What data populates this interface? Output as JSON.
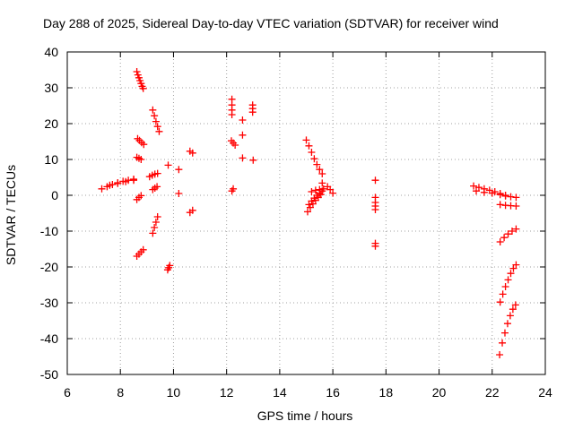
{
  "chart_data": {
    "type": "scatter",
    "title": "Day 288 of 2025, Sidereal Day-to-day VTEC variation (SDTVAR) for receiver wind",
    "xlabel": "GPS time / hours",
    "ylabel": "SDTVAR / TECUs",
    "xlim": [
      6,
      24
    ],
    "ylim": [
      -50,
      40
    ],
    "xticks": [
      6,
      8,
      10,
      12,
      14,
      16,
      18,
      20,
      22,
      24
    ],
    "yticks": [
      -50,
      -40,
      -30,
      -20,
      -10,
      0,
      10,
      20,
      30,
      40
    ],
    "grid": true,
    "marker": "+",
    "color": "#ff0000",
    "series": [
      {
        "name": "s01",
        "x": [
          7.3,
          7.5,
          7.7,
          7.9,
          8.1,
          8.3,
          8.5
        ],
        "y": [
          1.8,
          2.4,
          3.0,
          3.5,
          3.9,
          4.2,
          4.5
        ]
      },
      {
        "name": "s02",
        "x": [
          7.6,
          7.9,
          8.2,
          8.5
        ],
        "y": [
          2.8,
          3.3,
          3.8,
          4.2
        ]
      },
      {
        "name": "s03",
        "x": [
          8.62,
          8.66,
          8.7,
          8.74,
          8.78,
          8.82,
          8.86
        ],
        "y": [
          34.5,
          33.6,
          32.8,
          32.0,
          31.2,
          30.4,
          29.8
        ]
      },
      {
        "name": "s04",
        "x": [
          8.65,
          8.72,
          8.8,
          8.88
        ],
        "y": [
          15.8,
          15.3,
          14.7,
          14.2
        ]
      },
      {
        "name": "s05",
        "x": [
          8.62,
          8.7,
          8.78
        ],
        "y": [
          10.6,
          10.3,
          10.0
        ]
      },
      {
        "name": "s06",
        "x": [
          8.62,
          8.7,
          8.78
        ],
        "y": [
          -1.2,
          -0.6,
          -0.1
        ]
      },
      {
        "name": "s07",
        "x": [
          8.62,
          8.7,
          8.78,
          8.86
        ],
        "y": [
          -17.0,
          -16.4,
          -15.8,
          -15.2
        ]
      },
      {
        "name": "s08",
        "x": [
          9.22,
          9.28,
          9.34,
          9.4,
          9.46
        ],
        "y": [
          23.8,
          22.2,
          20.6,
          19.2,
          17.8
        ]
      },
      {
        "name": "s09",
        "x": [
          9.1,
          9.2,
          9.3,
          9.4
        ],
        "y": [
          5.2,
          5.6,
          5.9,
          6.1
        ]
      },
      {
        "name": "s10",
        "x": [
          9.22,
          9.3,
          9.38
        ],
        "y": [
          1.6,
          2.0,
          2.4
        ]
      },
      {
        "name": "s11",
        "x": [
          9.22,
          9.28,
          9.34,
          9.4
        ],
        "y": [
          -10.6,
          -9.0,
          -7.5,
          -6.0
        ]
      },
      {
        "name": "s12",
        "x": [
          9.78,
          9.82,
          9.86
        ],
        "y": [
          -20.8,
          -20.2,
          -19.6
        ]
      },
      {
        "name": "s13",
        "x": [
          9.8
        ],
        "y": [
          8.4
        ]
      },
      {
        "name": "s14",
        "x": [
          10.2
        ],
        "y": [
          7.2
        ]
      },
      {
        "name": "s15",
        "x": [
          10.2
        ],
        "y": [
          0.5
        ]
      },
      {
        "name": "s16",
        "x": [
          10.62,
          10.72
        ],
        "y": [
          12.3,
          11.8
        ]
      },
      {
        "name": "s17",
        "x": [
          10.62,
          10.72
        ],
        "y": [
          -4.8,
          -4.2
        ]
      },
      {
        "name": "s18",
        "x": [
          12.2,
          12.2,
          12.2,
          12.2
        ],
        "y": [
          26.8,
          25.2,
          23.8,
          22.5
        ]
      },
      {
        "name": "s19",
        "x": [
          12.18,
          12.25,
          12.32
        ],
        "y": [
          15.2,
          14.6,
          14.0
        ]
      },
      {
        "name": "s20",
        "x": [
          12.2,
          12.25
        ],
        "y": [
          1.2,
          1.8
        ]
      },
      {
        "name": "s21",
        "x": [
          12.6
        ],
        "y": [
          21.0
        ]
      },
      {
        "name": "s22",
        "x": [
          12.6
        ],
        "y": [
          16.8
        ]
      },
      {
        "name": "s23",
        "x": [
          12.6
        ],
        "y": [
          10.4
        ]
      },
      {
        "name": "s24",
        "x": [
          12.98,
          12.98,
          12.98
        ],
        "y": [
          25.2,
          24.2,
          23.2
        ]
      },
      {
        "name": "s25",
        "x": [
          13.0
        ],
        "y": [
          9.8
        ]
      },
      {
        "name": "s26",
        "x": [
          15.0,
          15.1,
          15.2,
          15.3,
          15.4,
          15.5,
          15.6
        ],
        "y": [
          15.4,
          13.8,
          12.0,
          10.2,
          8.6,
          7.2,
          6.0
        ]
      },
      {
        "name": "s27",
        "x": [
          15.05,
          15.15,
          15.25,
          15.35,
          15.45,
          15.55
        ],
        "y": [
          -4.6,
          -3.4,
          -2.4,
          -1.4,
          -0.6,
          0.2
        ]
      },
      {
        "name": "s28",
        "x": [
          15.1,
          15.2,
          15.3,
          15.4,
          15.5,
          15.6
        ],
        "y": [
          -2.6,
          -1.6,
          -0.8,
          0.0,
          0.6,
          1.2
        ]
      },
      {
        "name": "s29",
        "x": [
          15.2,
          15.35,
          15.5,
          15.65
        ],
        "y": [
          1.0,
          1.4,
          1.6,
          1.8
        ]
      },
      {
        "name": "s30",
        "x": [
          15.8,
          15.9,
          16.0
        ],
        "y": [
          2.4,
          1.6,
          0.6
        ]
      },
      {
        "name": "s31",
        "x": [
          15.6
        ],
        "y": [
          3.4
        ]
      },
      {
        "name": "s32",
        "x": [
          17.6
        ],
        "y": [
          4.2
        ]
      },
      {
        "name": "s33",
        "x": [
          17.6,
          17.6,
          17.6,
          17.6
        ],
        "y": [
          -0.6,
          -2.0,
          -3.0,
          -4.0
        ]
      },
      {
        "name": "s34",
        "x": [
          17.6,
          17.6
        ],
        "y": [
          -13.4,
          -14.2
        ]
      },
      {
        "name": "s35",
        "x": [
          21.3,
          21.5,
          21.7,
          21.9,
          22.1,
          22.3,
          22.5
        ],
        "y": [
          2.6,
          2.2,
          1.8,
          1.4,
          1.0,
          0.5,
          0.0
        ]
      },
      {
        "name": "s36",
        "x": [
          21.4,
          21.7,
          22.0
        ],
        "y": [
          1.2,
          0.8,
          0.6
        ]
      },
      {
        "name": "s37",
        "x": [
          22.3,
          22.5,
          22.7,
          22.9
        ],
        "y": [
          0.2,
          -0.2,
          -0.4,
          -0.6
        ]
      },
      {
        "name": "s38",
        "x": [
          22.3,
          22.5,
          22.7,
          22.9
        ],
        "y": [
          -2.6,
          -2.8,
          -2.9,
          -3.0
        ]
      },
      {
        "name": "s39",
        "x": [
          22.3,
          22.45,
          22.6,
          22.75,
          22.9
        ],
        "y": [
          -13.0,
          -11.8,
          -10.8,
          -10.0,
          -9.4
        ]
      },
      {
        "name": "s40",
        "x": [
          22.3,
          22.4,
          22.5,
          22.6,
          22.7,
          22.8,
          22.9
        ],
        "y": [
          -29.8,
          -27.6,
          -25.5,
          -23.6,
          -21.8,
          -20.4,
          -19.4
        ]
      },
      {
        "name": "s41",
        "x": [
          22.28,
          22.38,
          22.48,
          22.58,
          22.68,
          22.78,
          22.88
        ],
        "y": [
          -44.5,
          -41.2,
          -38.4,
          -35.8,
          -33.6,
          -31.8,
          -30.6
        ]
      }
    ]
  }
}
